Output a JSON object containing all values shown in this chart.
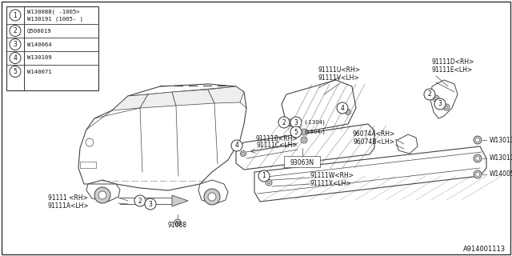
{
  "bg_color": "#ffffff",
  "border_color": "#333333",
  "line_color": "#444444",
  "text_color": "#111111",
  "parts_table": {
    "items": [
      {
        "num": 1,
        "codes": [
          "W130088( -1005>",
          "W130191 (1005- )"
        ]
      },
      {
        "num": 2,
        "codes": [
          "Q500019"
        ]
      },
      {
        "num": 3,
        "codes": [
          "W140064"
        ]
      },
      {
        "num": 4,
        "codes": [
          "W130109"
        ]
      },
      {
        "num": 5,
        "codes": [
          "W140071"
        ]
      }
    ]
  },
  "diagram_code": "A914001113"
}
